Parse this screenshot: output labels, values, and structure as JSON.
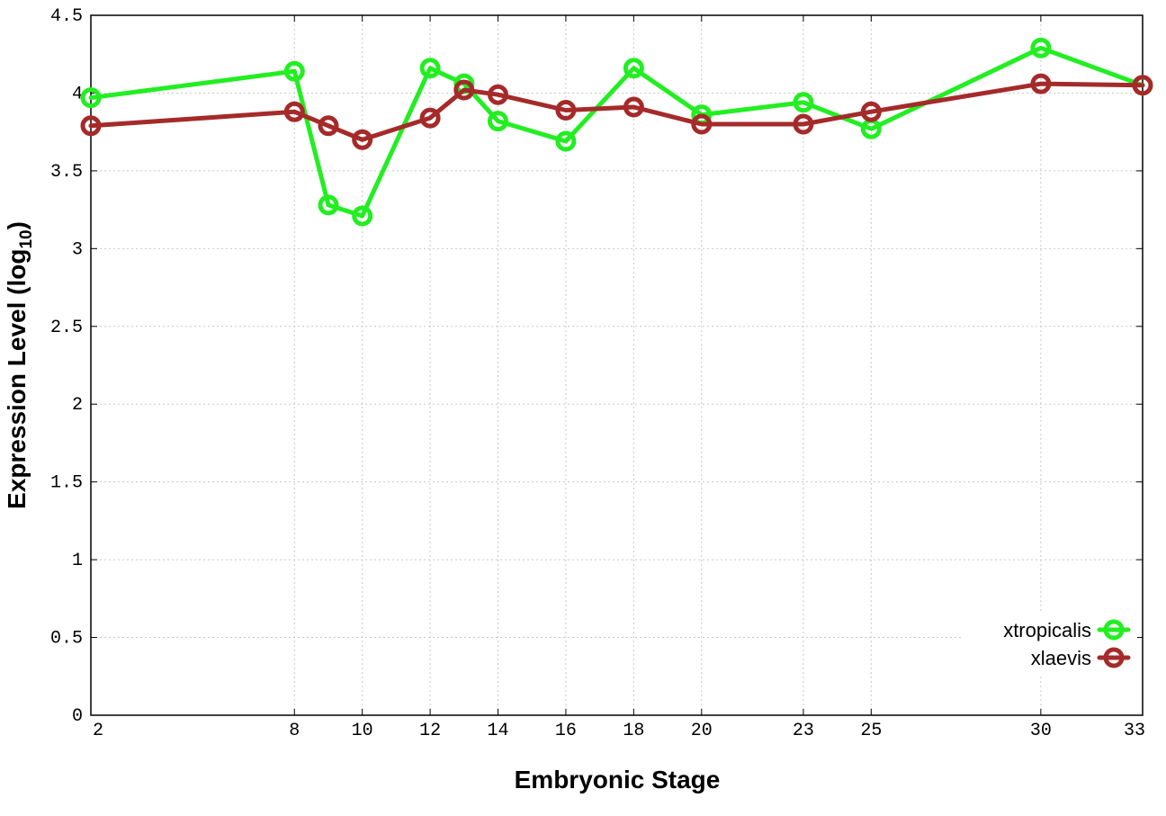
{
  "chart_data": {
    "type": "line",
    "title": "",
    "xlabel": "Embryonic Stage",
    "ylabel_main": "Expression Level (log",
    "ylabel_sub": "10",
    "ylabel_close": ")",
    "x_tick_labels": [
      "2",
      "8",
      "10",
      "12",
      "14",
      "16",
      "18",
      "20",
      "23",
      "25",
      "30",
      "33"
    ],
    "y_tick_labels": [
      "0",
      "0.5",
      "1",
      "1.5",
      "2",
      "2.5",
      "3",
      "3.5",
      "4",
      "4.5"
    ],
    "ylim": [
      0,
      4.5
    ],
    "grid": true,
    "legend_position": "bottom-right",
    "x": [
      2,
      8,
      9,
      10,
      12,
      13,
      14,
      16,
      18,
      20,
      23,
      25,
      30,
      33
    ],
    "series": [
      {
        "name": "xtropicalis",
        "color": "#22ee22",
        "values": [
          3.97,
          4.14,
          3.28,
          3.21,
          4.16,
          4.06,
          3.82,
          3.69,
          4.16,
          3.86,
          3.94,
          3.77,
          4.29,
          4.05
        ]
      },
      {
        "name": "xlaevis",
        "color": "#a52a2a",
        "values": [
          3.79,
          3.88,
          3.79,
          3.7,
          3.84,
          4.02,
          3.99,
          3.89,
          3.91,
          3.8,
          3.8,
          3.88,
          4.06,
          4.05
        ]
      }
    ]
  }
}
